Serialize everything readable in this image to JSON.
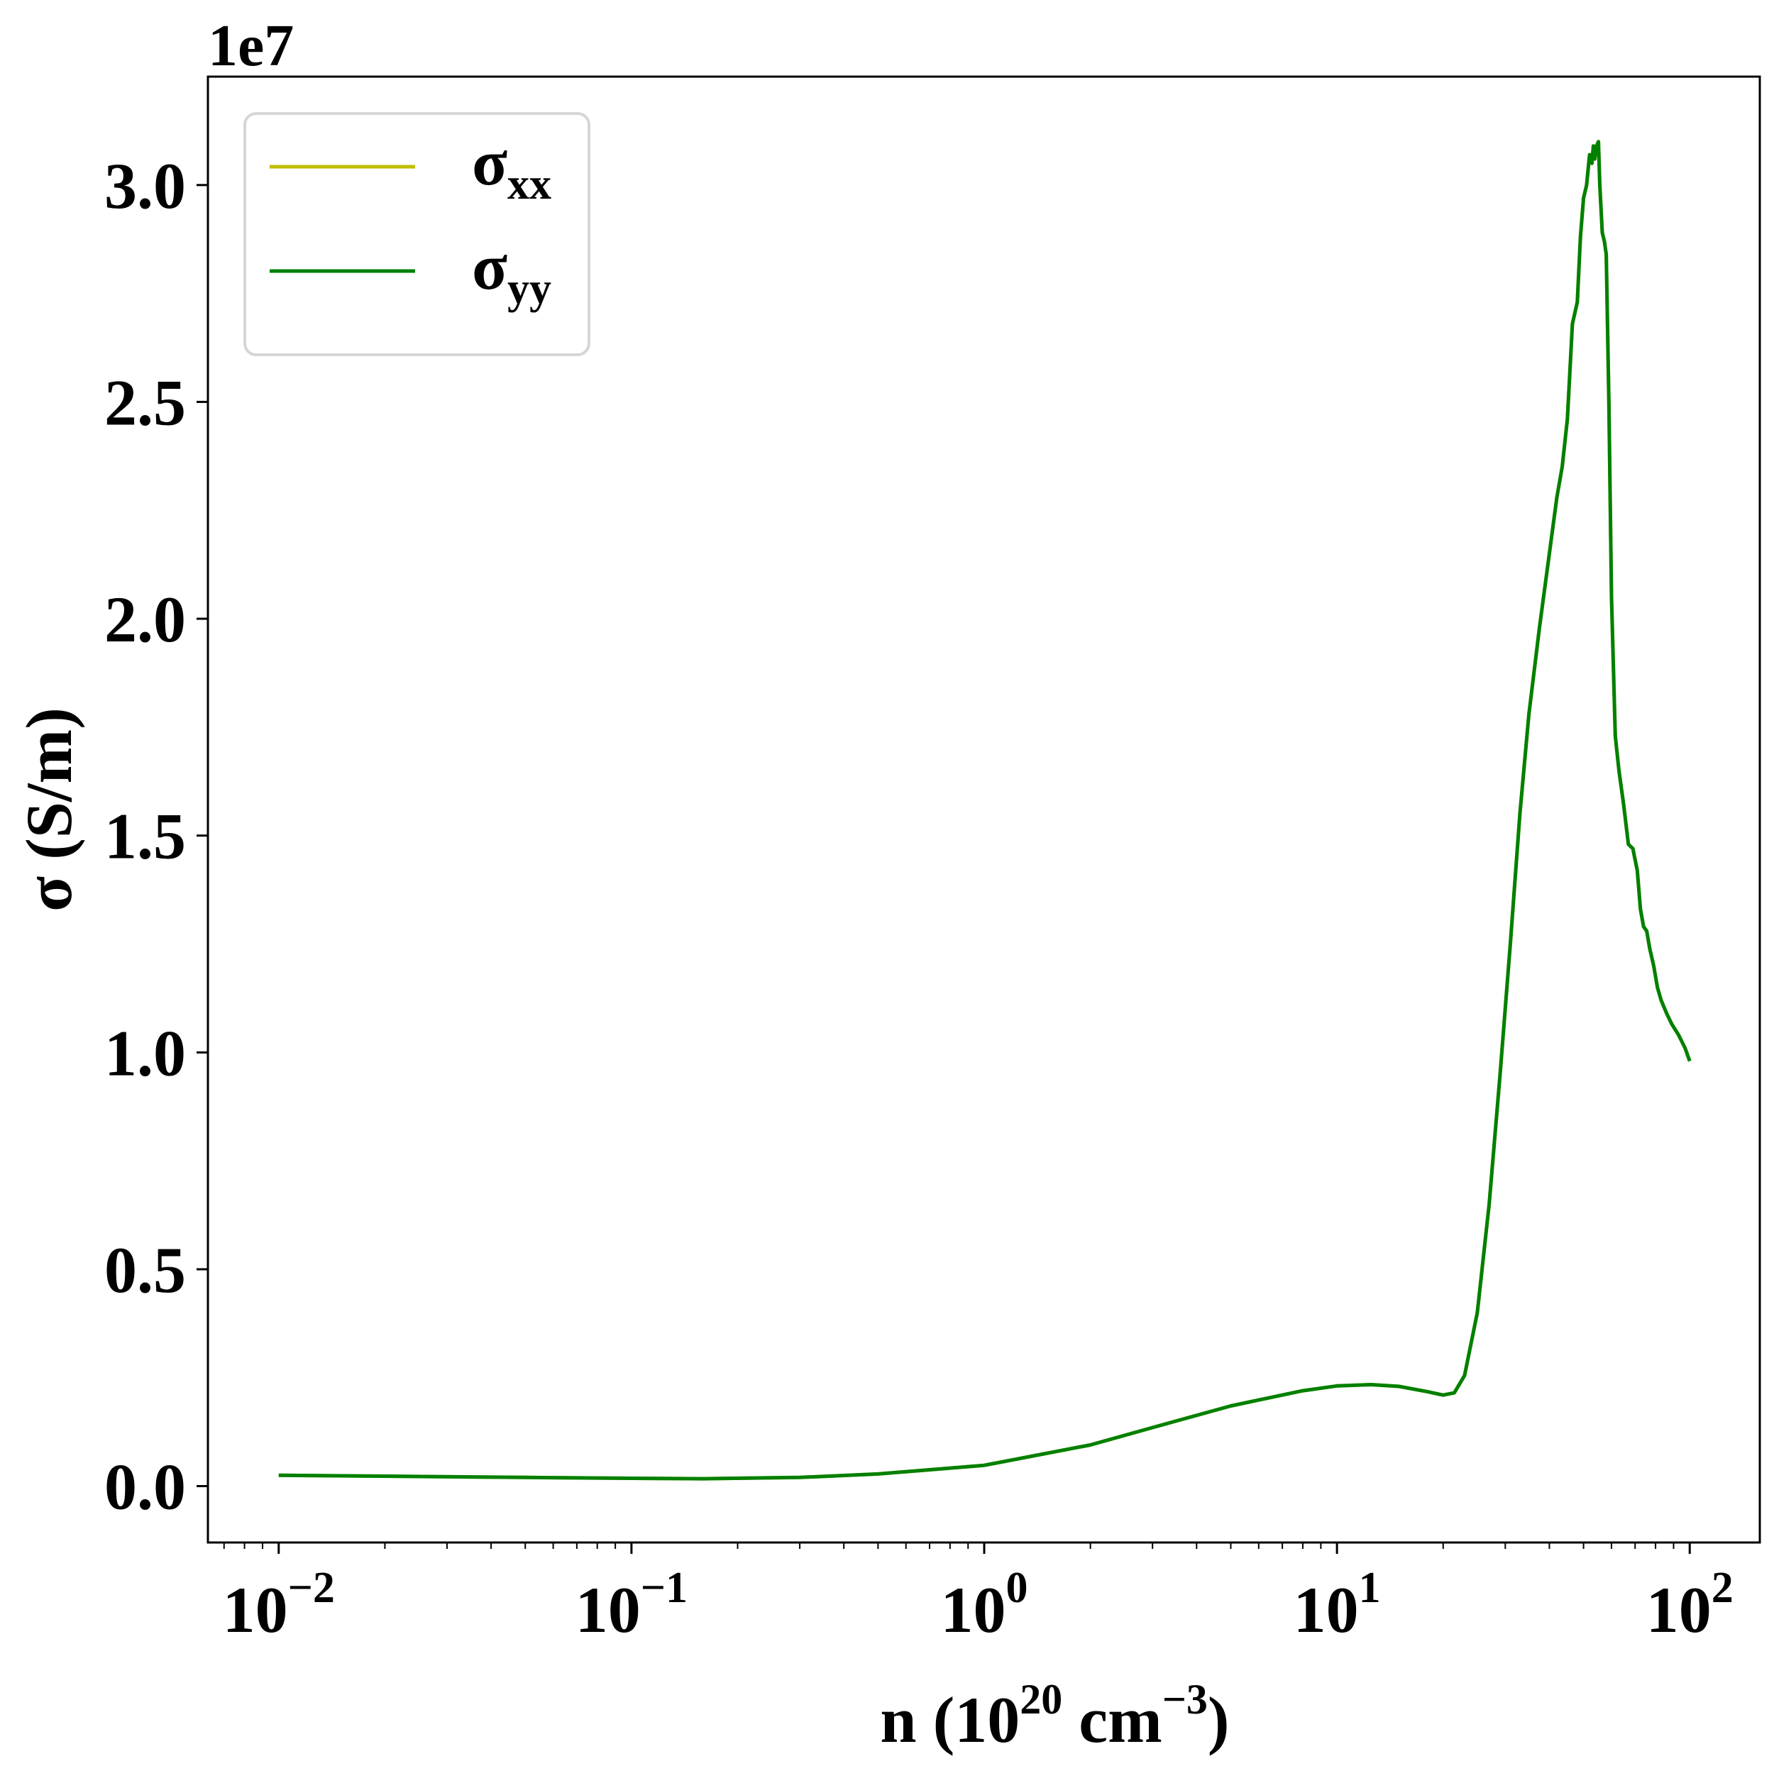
{
  "chart_data": {
    "type": "line",
    "title": "",
    "xlabel": {
      "base": "n (10",
      "sup1": "20",
      "mid": " cm",
      "sup2": "−3",
      "end": ")"
    },
    "ylabel": "σ (S/m)",
    "x_scale": "log",
    "xlim": [
      0.0063,
      158
    ],
    "ylim": [
      -1300000,
      32500000
    ],
    "y_offset_label": "1e7",
    "x_ticks": [
      {
        "value": 0.01,
        "base": "10",
        "exp": "−2"
      },
      {
        "value": 0.1,
        "base": "10",
        "exp": "−1"
      },
      {
        "value": 1,
        "base": "10",
        "exp": "0"
      },
      {
        "value": 10,
        "base": "10",
        "exp": "1"
      },
      {
        "value": 100,
        "base": "10",
        "exp": "2"
      }
    ],
    "y_ticks": [
      {
        "value": 0,
        "label": "0.0"
      },
      {
        "value": 5000000,
        "label": "0.5"
      },
      {
        "value": 10000000,
        "label": "1.0"
      },
      {
        "value": 15000000,
        "label": "1.5"
      },
      {
        "value": 20000000,
        "label": "2.0"
      },
      {
        "value": 25000000,
        "label": "2.5"
      },
      {
        "value": 30000000,
        "label": "3.0"
      }
    ],
    "grid": false,
    "legend_position": "top-left",
    "series": [
      {
        "name": "xx",
        "label_main": "σ",
        "label_sub": "xx",
        "color": "#bfbf00",
        "x": [
          0.01,
          0.02,
          0.05,
          0.1,
          0.16,
          0.3,
          0.5,
          1,
          2,
          3,
          5,
          8,
          10,
          12.5,
          15,
          18,
          20,
          21.5,
          23,
          25,
          27,
          29,
          31,
          33,
          35,
          37.5,
          40,
          42,
          43.5,
          45,
          46.5,
          48,
          49,
          50,
          51,
          52,
          52.8,
          53.3,
          53.8,
          54.4,
          55.1,
          55.6,
          56.5,
          57.3,
          58,
          59,
          60,
          61.5,
          63,
          65,
          67,
          69,
          71,
          72.5,
          74,
          75.5,
          77,
          79,
          81,
          83,
          86,
          89,
          93,
          97,
          100
        ],
        "y": [
          250000,
          230000,
          200000,
          180000,
          170000,
          200000,
          280000,
          480000,
          950000,
          1350000,
          1850000,
          2200000,
          2310000,
          2340000,
          2300000,
          2180000,
          2100000,
          2150000,
          2550000,
          4000000,
          6500000,
          9500000,
          12500000,
          15500000,
          17800000,
          19800000,
          21500000,
          22800000,
          23500000,
          24600000,
          26800000,
          27300000,
          28800000,
          29700000,
          30000000,
          30700000,
          30500000,
          30900000,
          30600000,
          30900000,
          31000000,
          30000000,
          28900000,
          28700000,
          28400000,
          25000000,
          20500000,
          17300000,
          16500000,
          15700000,
          14800000,
          14700000,
          14200000,
          13300000,
          12900000,
          12800000,
          12400000,
          12000000,
          11500000,
          11200000,
          10900000,
          10650000,
          10400000,
          10100000,
          9800000
        ]
      },
      {
        "name": "yy",
        "label_main": "σ",
        "label_sub": "yy",
        "color": "#008000",
        "x": [
          0.01,
          0.02,
          0.05,
          0.1,
          0.16,
          0.3,
          0.5,
          1,
          2,
          3,
          5,
          8,
          10,
          12.5,
          15,
          18,
          20,
          21.5,
          23,
          25,
          27,
          29,
          31,
          33,
          35,
          37.5,
          40,
          42,
          43.5,
          45,
          46.5,
          48,
          49,
          50,
          51,
          52,
          52.8,
          53.3,
          53.8,
          54.4,
          55.1,
          55.6,
          56.5,
          57.3,
          58,
          59,
          60,
          61.5,
          63,
          65,
          67,
          69,
          71,
          72.5,
          74,
          75.5,
          77,
          79,
          81,
          83,
          86,
          89,
          93,
          97,
          100
        ],
        "y": [
          250000,
          230000,
          200000,
          180000,
          170000,
          200000,
          280000,
          480000,
          950000,
          1350000,
          1850000,
          2200000,
          2310000,
          2340000,
          2300000,
          2180000,
          2100000,
          2150000,
          2550000,
          4000000,
          6500000,
          9500000,
          12500000,
          15500000,
          17800000,
          19800000,
          21500000,
          22800000,
          23500000,
          24600000,
          26800000,
          27300000,
          28800000,
          29700000,
          30000000,
          30700000,
          30500000,
          30900000,
          30600000,
          30900000,
          31000000,
          30000000,
          28900000,
          28700000,
          28400000,
          25000000,
          20500000,
          17300000,
          16500000,
          15700000,
          14800000,
          14700000,
          14200000,
          13300000,
          12900000,
          12800000,
          12400000,
          12000000,
          11500000,
          11200000,
          10900000,
          10650000,
          10400000,
          10100000,
          9800000
        ]
      }
    ]
  }
}
